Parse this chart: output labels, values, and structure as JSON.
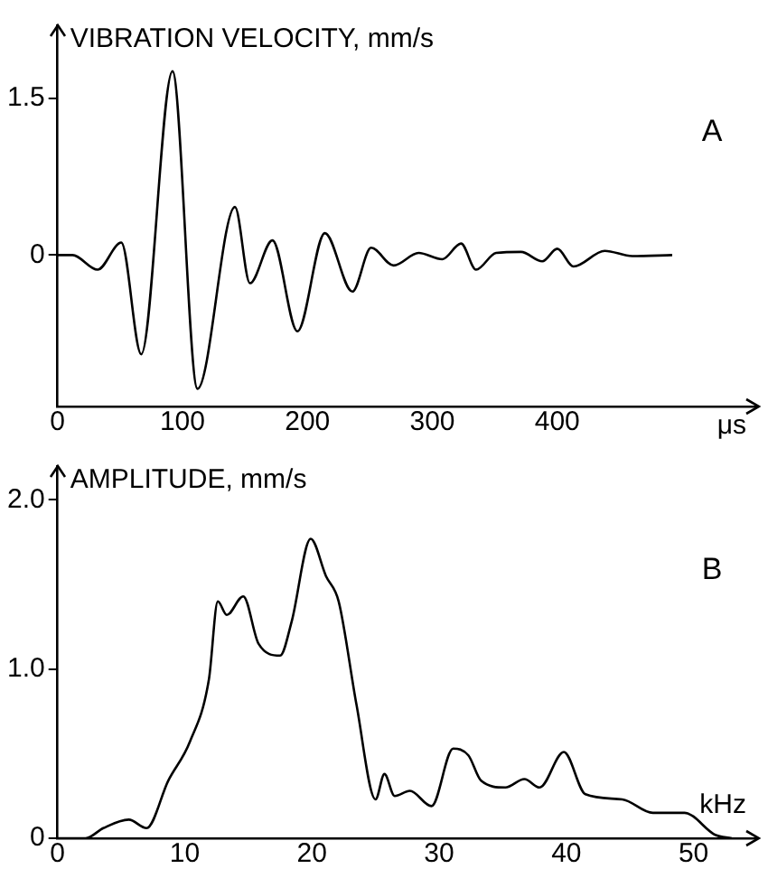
{
  "chart_data": [
    {
      "type": "line",
      "ylabel": "VIBRATION VELOCITY, mm/s",
      "xlabel": "μs",
      "annotations": [
        "A"
      ],
      "x": [
        0,
        12,
        32,
        51,
        67,
        92,
        112,
        142,
        154,
        172,
        192,
        214,
        236,
        251,
        269,
        289,
        308,
        323,
        335,
        351,
        371,
        388,
        400,
        413,
        438,
        460,
        492
      ],
      "series": [
        {
          "color": "#000000",
          "values": [
            0,
            0,
            -0.14,
            0.12,
            -0.95,
            1.76,
            -1.28,
            0.46,
            -0.27,
            0.14,
            -0.73,
            0.21,
            -0.35,
            0.07,
            -0.1,
            0.02,
            -0.04,
            0.11,
            -0.14,
            0.02,
            0.03,
            -0.06,
            0.06,
            -0.11,
            0.04,
            -0.01,
            0
          ]
        }
      ],
      "xlim": [
        0,
        560
      ],
      "xticks": [
        0,
        100,
        200,
        300,
        400
      ],
      "ylim": [
        -1.45,
        2.2
      ],
      "yticks": [
        0,
        {
          "value": 1.5,
          "label": "1.5"
        }
      ],
      "grid": false,
      "legend": false,
      "marker": "none",
      "line_style": "solid"
    },
    {
      "type": "line",
      "ylabel": "AMPLITUDE, mm/s",
      "xlabel": "kHz",
      "annotations": [
        "B"
      ],
      "x": [
        0,
        2.2,
        3.6,
        5.6,
        7.0,
        8.7,
        10.4,
        11.9,
        12.6,
        13.3,
        14.6,
        15.8,
        17.5,
        18.4,
        19.9,
        21.1,
        22.1,
        23.5,
        25.0,
        25.7,
        26.5,
        27.7,
        29.4,
        31.1,
        32.3,
        33.3,
        35.2,
        36.7,
        37.9,
        39.8,
        41.5,
        44.4,
        46.8,
        49.3,
        51.7,
        53
      ],
      "series": [
        {
          "color": "#000000",
          "values": [
            0,
            0,
            0.06,
            0.11,
            0.06,
            0.34,
            0.57,
            0.94,
            1.4,
            1.32,
            1.43,
            1.15,
            1.08,
            1.28,
            1.77,
            1.55,
            1.4,
            0.79,
            0.23,
            0.38,
            0.25,
            0.28,
            0.19,
            0.53,
            0.49,
            0.34,
            0.3,
            0.35,
            0.3,
            0.51,
            0.26,
            0.23,
            0.15,
            0.15,
            0.02,
            0
          ]
        }
      ],
      "xlim": [
        0,
        55
      ],
      "xticks": [
        0,
        10,
        20,
        30,
        40,
        50
      ],
      "ylim": [
        0,
        2.2
      ],
      "yticks": [
        0,
        {
          "value": 1,
          "label": "1.0"
        },
        {
          "value": 2,
          "label": "2.0"
        }
      ],
      "grid": false,
      "legend": false,
      "marker": "none",
      "line_style": "solid"
    }
  ]
}
